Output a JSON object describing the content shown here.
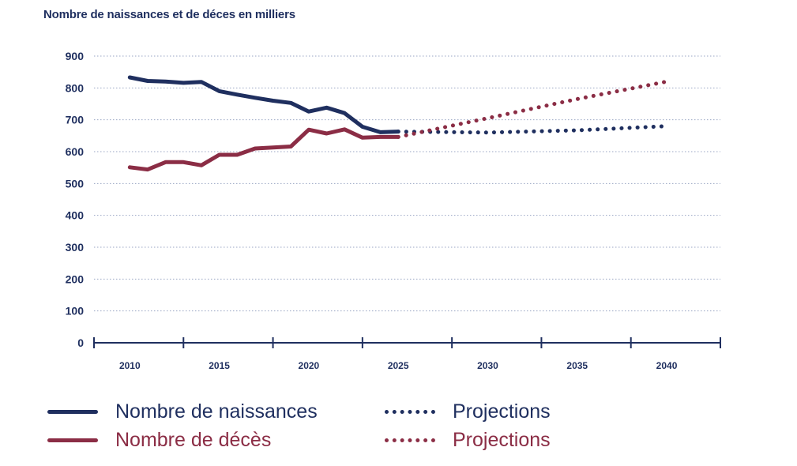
{
  "chart_data": {
    "type": "line",
    "title": "Nombre de naissances et de déces en milliers",
    "xlabel": "",
    "ylabel": "",
    "xlim": [
      2008,
      2043
    ],
    "ylim": [
      0,
      900
    ],
    "y_ticks": [
      0,
      100,
      200,
      300,
      400,
      500,
      600,
      700,
      800,
      900
    ],
    "x_tick_labels": [
      2010,
      2015,
      2020,
      2025,
      2030,
      2035,
      2040
    ],
    "x_tick_marks": [
      2008,
      2013,
      2018,
      2023,
      2028,
      2033,
      2038,
      2043
    ],
    "grid": true,
    "series": [
      {
        "name": "Nombre de naissances",
        "color": "#1f2f5f",
        "style": "solid",
        "x": [
          2010,
          2011,
          2012,
          2013,
          2014,
          2015,
          2016,
          2017,
          2018,
          2019,
          2020,
          2021,
          2022,
          2023,
          2024,
          2025
        ],
        "values": [
          833,
          822,
          820,
          816,
          819,
          790,
          779,
          769,
          760,
          753,
          726,
          738,
          721,
          678,
          661,
          663
        ]
      },
      {
        "name": "Nombre de décès",
        "color": "#8b2d45",
        "style": "solid",
        "x": [
          2010,
          2011,
          2012,
          2013,
          2014,
          2015,
          2016,
          2017,
          2018,
          2019,
          2020,
          2021,
          2022,
          2023,
          2024,
          2025
        ],
        "values": [
          551,
          544,
          567,
          567,
          557,
          590,
          590,
          610,
          613,
          616,
          669,
          657,
          670,
          644,
          646,
          646
        ]
      },
      {
        "name": "Projections",
        "color": "#1f2f5f",
        "style": "dotted",
        "x": [
          2025,
          2030,
          2035,
          2040
        ],
        "values": [
          663,
          660,
          667,
          680
        ]
      },
      {
        "name": "Projections",
        "color": "#8b2d45",
        "style": "dotted",
        "x": [
          2025,
          2030,
          2035,
          2040
        ],
        "values": [
          646,
          705,
          765,
          820
        ]
      }
    ]
  },
  "legend": {
    "births_label": "Nombre de naissances",
    "deaths_label": "Nombre de décès",
    "births_projection_label": "Projections",
    "deaths_projection_label": "Projections"
  },
  "colors": {
    "navy": "#1f2f5f",
    "crimson": "#8b2d45",
    "grid": "#9aa6c4"
  }
}
